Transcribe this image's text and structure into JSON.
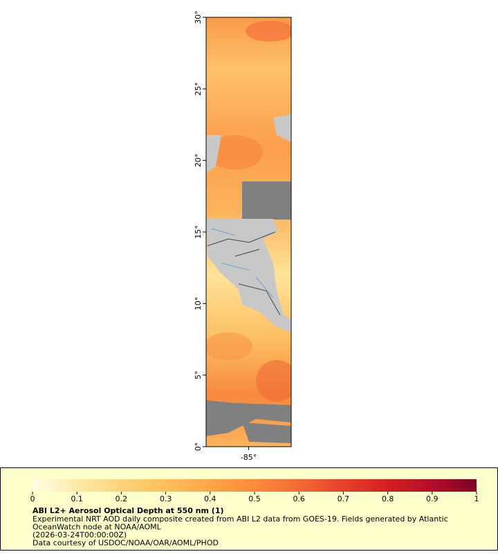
{
  "map": {
    "latlim": [
      0,
      30
    ],
    "lonlim": [
      -88,
      -82
    ],
    "lat_ticks": [
      {
        "value": 0,
        "label": "0°"
      },
      {
        "value": 5,
        "label": "5°"
      },
      {
        "value": 10,
        "label": "10°"
      },
      {
        "value": 15,
        "label": "15°"
      },
      {
        "value": 20,
        "label": "20°"
      },
      {
        "value": 25,
        "label": "25°"
      },
      {
        "value": 30,
        "label": "30°"
      }
    ],
    "lon_ticks": [
      {
        "value": -85,
        "label": "-85°"
      }
    ]
  },
  "legend": {
    "range": [
      0,
      1
    ],
    "ticks": [
      0,
      0.1,
      0.2,
      0.3,
      0.4,
      0.5,
      0.6,
      0.7,
      0.8,
      0.9,
      1
    ],
    "colors": [
      "#ffffe5",
      "#ffe9a8",
      "#fed27a",
      "#febf5a",
      "#fda547",
      "#fc8a3a",
      "#f46a35",
      "#e8402a",
      "#d31f23",
      "#b50d28",
      "#800026"
    ],
    "title": "ABI L2+ Aerosol Optical Depth at 550 nm (1)",
    "lines": [
      "Experimental NRT AOD daily composite created from ABI L2 data from GOES-19. Fields generated by Atlantic",
      "OceanWatch node at NOAA/AOML",
      "(2026-03-24T00:00:00Z)",
      "Data courtesy of USDOC/NOAA/OAR/AOML/PHOD"
    ]
  }
}
